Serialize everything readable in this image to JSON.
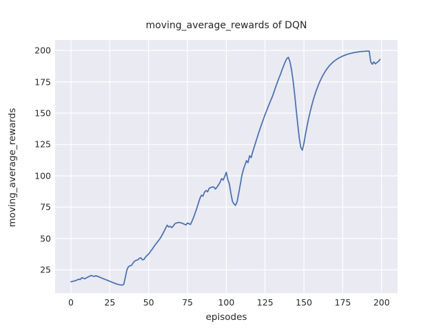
{
  "figure": {
    "title": "moving_average_rewards of DQN",
    "xlabel": "episodes",
    "ylabel": "moving_average_rewards",
    "background_color": "#ffffff",
    "axes_background_color": "#eaeaf2",
    "grid_color": "#ffffff",
    "text_color": "#262626"
  },
  "chart_data": {
    "type": "line",
    "title": "moving_average_rewards of DQN",
    "xlabel": "episodes",
    "ylabel": "moving_average_rewards",
    "grid": true,
    "legend": false,
    "x_ticks": [
      0,
      25,
      50,
      75,
      100,
      125,
      150,
      175,
      200
    ],
    "y_ticks": [
      25,
      50,
      75,
      100,
      125,
      150,
      175,
      200
    ],
    "xlim": [
      -10.2,
      210.3
    ],
    "ylim": [
      6.5,
      208.3
    ],
    "line_width": 1.8,
    "series": [
      {
        "name": "moving_average_rewards",
        "color": "#4c72b0",
        "x": [
          0,
          1,
          2,
          3,
          4,
          5,
          6,
          7,
          8,
          9,
          10,
          11,
          12,
          13,
          14,
          15,
          16,
          17,
          18,
          19,
          20,
          21,
          22,
          23,
          24,
          25,
          26,
          27,
          28,
          29,
          30,
          31,
          32,
          33,
          34,
          35,
          36,
          37,
          38,
          39,
          40,
          41,
          42,
          43,
          44,
          45,
          46,
          47,
          48,
          49,
          50,
          51,
          52,
          53,
          54,
          55,
          56,
          57,
          58,
          59,
          60,
          61,
          62,
          63,
          64,
          65,
          66,
          67,
          68,
          69,
          70,
          71,
          72,
          73,
          74,
          75,
          76,
          77,
          78,
          79,
          80,
          81,
          82,
          83,
          84,
          85,
          86,
          87,
          88,
          89,
          90,
          91,
          92,
          93,
          94,
          95,
          96,
          97,
          98,
          99,
          100,
          101,
          102,
          103,
          104,
          105,
          106,
          107,
          108,
          109,
          110,
          111,
          112,
          113,
          114,
          115,
          116,
          117,
          118,
          119,
          120,
          121,
          122,
          123,
          124,
          125,
          126,
          127,
          128,
          129,
          130,
          131,
          132,
          133,
          134,
          135,
          136,
          137,
          138,
          139,
          140,
          141,
          142,
          143,
          144,
          145,
          146,
          147,
          148,
          149,
          150,
          151,
          152,
          153,
          154,
          155,
          156,
          157,
          158,
          159,
          160,
          161,
          162,
          163,
          164,
          165,
          166,
          167,
          168,
          169,
          170,
          171,
          172,
          173,
          174,
          175,
          176,
          177,
          178,
          179,
          180,
          181,
          182,
          183,
          184,
          185,
          186,
          187,
          188,
          189,
          190,
          191,
          192,
          193,
          194,
          195,
          196,
          197,
          198,
          199
        ],
        "y": [
          15.5,
          15.8,
          16.1,
          16.4,
          17.0,
          17.6,
          17.2,
          18.8,
          18.3,
          17.9,
          18.7,
          19.3,
          19.9,
          20.6,
          20.1,
          19.8,
          20.3,
          19.9,
          19.4,
          18.9,
          18.4,
          17.9,
          17.4,
          16.9,
          16.4,
          15.9,
          15.4,
          14.9,
          14.4,
          13.9,
          13.5,
          13.2,
          13.0,
          12.8,
          13.5,
          19.0,
          25.0,
          27.5,
          28.2,
          28.6,
          30.5,
          32.0,
          32.6,
          33.0,
          34.2,
          34.6,
          33.0,
          33.3,
          35.2,
          36.5,
          37.6,
          39.3,
          41.0,
          42.8,
          44.6,
          46.2,
          47.8,
          49.4,
          51.2,
          53.6,
          55.8,
          58.4,
          60.6,
          59.2,
          59.7,
          58.7,
          60.2,
          61.9,
          62.4,
          62.7,
          62.8,
          62.4,
          62.0,
          61.4,
          60.8,
          62.3,
          61.8,
          61.2,
          64.0,
          67.0,
          70.5,
          74.0,
          78.0,
          82.0,
          84.5,
          83.8,
          87.0,
          88.3,
          87.2,
          90.0,
          90.6,
          91.1,
          91.0,
          89.4,
          91.0,
          92.7,
          94.9,
          97.7,
          96.6,
          99.5,
          102.8,
          97.0,
          93.5,
          86.0,
          79.5,
          77.5,
          76.5,
          79.5,
          86.0,
          93.0,
          100.0,
          105.0,
          108.5,
          112.0,
          110.5,
          116.0,
          114.5,
          119.0,
          123.0,
          127.0,
          131.0,
          134.8,
          138.5,
          142.0,
          145.5,
          148.8,
          152.0,
          155.2,
          158.3,
          161.3,
          164.2,
          168.0,
          171.5,
          175.0,
          178.2,
          181.3,
          184.8,
          188.0,
          191.0,
          193.5,
          194.5,
          191.0,
          184.5,
          176.0,
          165.0,
          153.0,
          141.0,
          130.0,
          122.5,
          120.5,
          126.0,
          133.0,
          139.5,
          145.5,
          151.0,
          156.0,
          160.5,
          164.5,
          168.2,
          171.5,
          174.5,
          177.2,
          179.6,
          181.8,
          183.8,
          185.6,
          187.2,
          188.6,
          189.8,
          190.9,
          191.9,
          192.8,
          193.6,
          194.3,
          194.9,
          195.5,
          196.0,
          196.5,
          196.9,
          197.3,
          197.6,
          197.9,
          198.2,
          198.4,
          198.6,
          198.8,
          199.0,
          199.1,
          199.2,
          199.3,
          199.4,
          199.45,
          199.5,
          191.0,
          189.0,
          190.8,
          189.3,
          190.3,
          191.3,
          192.8
        ]
      }
    ]
  }
}
